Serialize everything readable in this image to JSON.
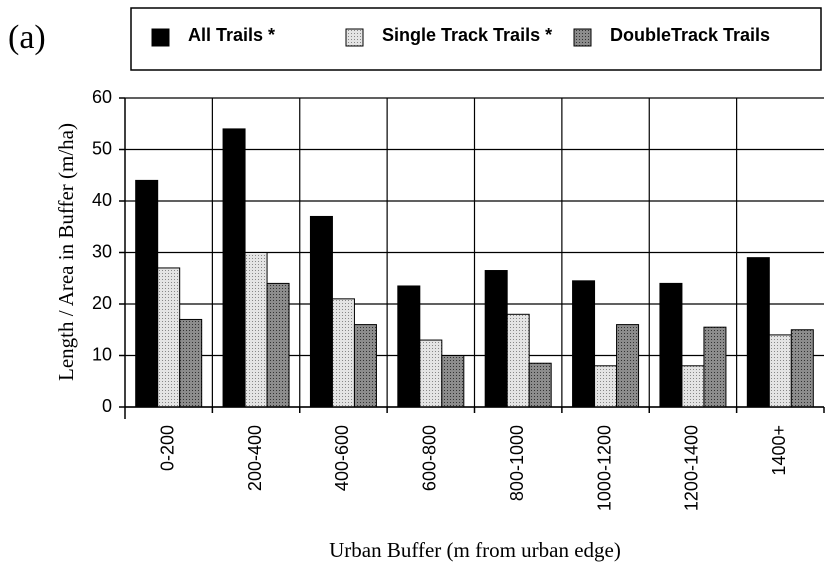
{
  "chart_data": {
    "type": "bar",
    "panel_label": "(a)",
    "xlabel": "Urban Buffer (m from urban edge)",
    "ylabel": "Length / Area in Buffer (m/ha)",
    "categories": [
      "0-200",
      "200-400",
      "400-600",
      "600-800",
      "800-1000",
      "1000-1200",
      "1200-1400",
      "1400+"
    ],
    "series": [
      {
        "name": "All Trails *",
        "color": "#000000",
        "values": [
          44,
          54,
          37,
          23.5,
          26.5,
          24.5,
          24,
          29
        ]
      },
      {
        "name": "Single Track Trails *",
        "color": "#e4e4e4",
        "values": [
          27,
          30,
          21,
          13,
          18,
          8,
          8,
          14
        ]
      },
      {
        "name": "DoubleTrack Trails",
        "color": "#8c8c8c",
        "values": [
          17,
          24,
          16,
          10,
          8.5,
          16,
          15.5,
          15
        ]
      }
    ],
    "ylim": [
      0,
      60
    ],
    "yticks": [
      0,
      10,
      20,
      30,
      40,
      50,
      60
    ],
    "grid": true
  }
}
